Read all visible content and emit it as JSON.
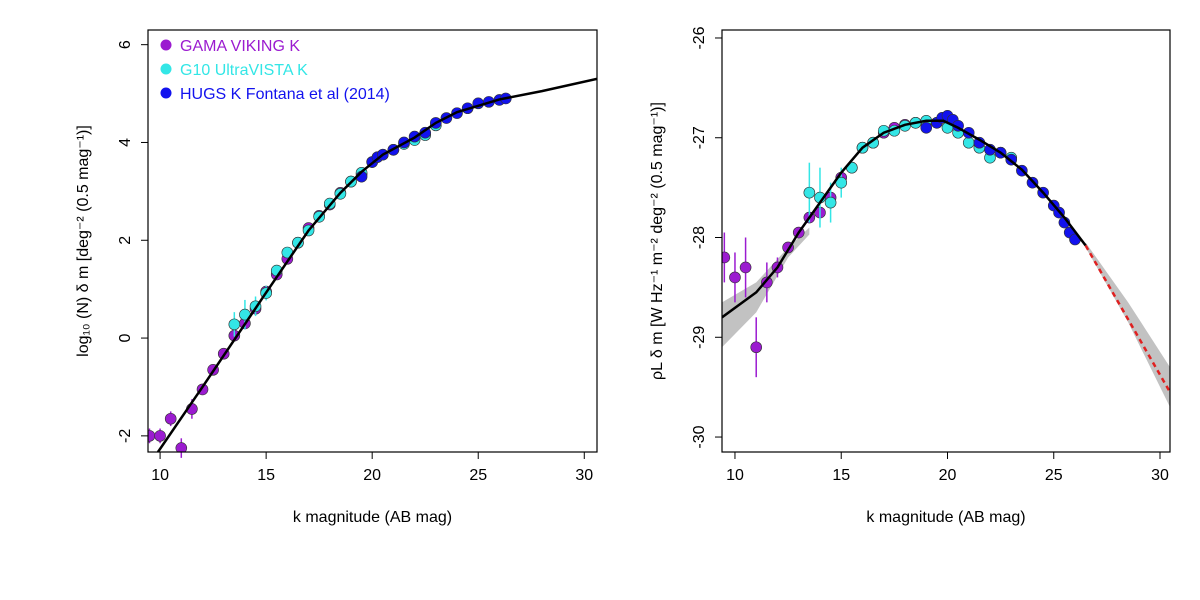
{
  "chart_data": [
    {
      "type": "scatter",
      "xlabel": "k magnitude (AB mag)",
      "ylabel": "log₁₀ (N) δ m [deg⁻² (0.5 mag⁻¹)]",
      "xlim": [
        9.43,
        30.6
      ],
      "ylim": [
        -2.33,
        6.3
      ],
      "xticks": [
        10,
        15,
        20,
        25,
        30
      ],
      "yticks": [
        -2,
        0,
        2,
        4,
        6
      ],
      "legend": "top-left",
      "series": [
        {
          "name": "GAMA VIKING K",
          "color": "#9b1bd0",
          "x": [
            9.5,
            10,
            10.5,
            11,
            11.5,
            12,
            12.5,
            13,
            13.5,
            14,
            14.5,
            15,
            15.5,
            16,
            16.5,
            17,
            17.5,
            18,
            18.5,
            19,
            19.5
          ],
          "values": [
            -2.0,
            -2.0,
            -1.65,
            -2.25,
            -1.45,
            -1.05,
            -0.65,
            -0.32,
            0.05,
            0.3,
            0.6,
            0.95,
            1.3,
            1.62,
            1.95,
            2.25,
            2.5,
            2.73,
            2.97,
            3.2,
            3.35
          ],
          "errors": [
            0.15,
            0.15,
            0.15,
            0.2,
            0.2,
            null,
            null,
            null,
            null,
            null,
            null,
            null,
            null,
            null,
            null,
            null,
            null,
            null,
            null,
            null,
            null
          ]
        },
        {
          "name": "G10 UltraVISTA K",
          "color": "#33e6e6",
          "x": [
            13.5,
            14,
            14.5,
            15,
            15.5,
            16,
            16.5,
            17,
            17.5,
            18,
            18.5,
            19,
            19.5,
            20,
            20.5,
            21,
            21.5,
            22,
            22.5,
            23
          ],
          "values": [
            0.28,
            0.48,
            0.65,
            0.92,
            1.38,
            1.75,
            1.95,
            2.2,
            2.48,
            2.75,
            2.95,
            3.2,
            3.38,
            3.6,
            3.75,
            3.85,
            3.97,
            4.05,
            4.15,
            4.35
          ],
          "errors": [
            0.25,
            0.3,
            0.2,
            0.15,
            null,
            null,
            null,
            null,
            null,
            null,
            null,
            null,
            null,
            null,
            null,
            null,
            null,
            null,
            null,
            null
          ]
        },
        {
          "name": "HUGS K Fontana et al (2014)",
          "color": "#1212ee",
          "x": [
            19.5,
            20,
            20.25,
            20.5,
            21,
            21.5,
            22,
            22.5,
            23,
            23.5,
            24,
            24.5,
            25,
            25.5,
            26,
            26.3
          ],
          "values": [
            3.3,
            3.6,
            3.7,
            3.75,
            3.85,
            4.0,
            4.12,
            4.2,
            4.4,
            4.5,
            4.6,
            4.7,
            4.8,
            4.83,
            4.87,
            4.9
          ]
        }
      ],
      "fit": {
        "color": "#000000",
        "x": [
          9.9,
          12,
          15,
          17,
          18.5,
          19.5,
          20.5,
          22,
          23,
          24,
          26,
          28,
          30.6
        ],
        "values": [
          -2.33,
          -1.0,
          0.93,
          2.2,
          2.97,
          3.4,
          3.75,
          4.1,
          4.4,
          4.62,
          4.88,
          5.05,
          5.3
        ]
      }
    },
    {
      "type": "scatter",
      "xlabel": "k magnitude (AB mag)",
      "ylabel": "ρL δ m [W Hz⁻¹ m⁻² deg⁻² (0.5 mag⁻¹)]",
      "xlim": [
        9.39,
        30.47
      ],
      "ylim": [
        -30.15,
        -25.92
      ],
      "xticks": [
        10,
        15,
        20,
        25,
        30
      ],
      "yticks": [
        -30,
        -29,
        -28,
        -27,
        -26
      ],
      "series": [
        {
          "name": "GAMA VIKING K",
          "color": "#9b1bd0",
          "x": [
            9.5,
            10,
            10.5,
            11,
            11.5,
            12,
            12.5,
            13,
            13.5,
            14,
            14.5,
            15,
            15.5,
            16,
            16.5,
            17,
            17.5,
            18,
            18.5,
            19
          ],
          "values": [
            -28.2,
            -28.4,
            -28.3,
            -29.1,
            -28.45,
            -28.3,
            -28.1,
            -27.95,
            -27.8,
            -27.75,
            -27.6,
            -27.4,
            -27.3,
            -27.1,
            -27.05,
            -26.95,
            -26.9,
            -26.87,
            -26.85,
            -26.85
          ],
          "errors": [
            0.25,
            0.25,
            0.3,
            0.3,
            0.2,
            0.1,
            null,
            null,
            null,
            null,
            null,
            null,
            null,
            null,
            null,
            null,
            null,
            null,
            null,
            null
          ]
        },
        {
          "name": "G10 UltraVISTA K",
          "color": "#33e6e6",
          "x": [
            13.5,
            14,
            14.5,
            15,
            15.5,
            16,
            16.5,
            17,
            17.5,
            18,
            18.5,
            19,
            19.5,
            20,
            20.5,
            21,
            21.5,
            22,
            22.5,
            23
          ],
          "values": [
            -27.55,
            -27.6,
            -27.65,
            -27.45,
            -27.3,
            -27.1,
            -27.05,
            -26.93,
            -26.93,
            -26.88,
            -26.85,
            -26.83,
            -26.85,
            -26.9,
            -26.95,
            -27.05,
            -27.1,
            -27.2,
            -27.15,
            -27.2
          ],
          "errors": [
            0.3,
            0.3,
            0.2,
            0.15,
            null,
            null,
            null,
            null,
            null,
            null,
            null,
            null,
            null,
            null,
            null,
            null,
            null,
            null,
            null,
            null
          ]
        },
        {
          "name": "HUGS K Fontana et al (2014)",
          "color": "#1212ee",
          "x": [
            19,
            19.5,
            19.75,
            20,
            20.25,
            20.5,
            21,
            21.5,
            22,
            22.5,
            23,
            23.5,
            24,
            24.5,
            25,
            25.25,
            25.5,
            25.75,
            26
          ],
          "values": [
            -26.9,
            -26.85,
            -26.8,
            -26.78,
            -26.82,
            -26.88,
            -26.95,
            -27.05,
            -27.12,
            -27.15,
            -27.22,
            -27.33,
            -27.45,
            -27.55,
            -27.68,
            -27.75,
            -27.85,
            -27.95,
            -28.02
          ]
        }
      ],
      "bands": [
        {
          "color": "#999999",
          "x": [
            9.39,
            11,
            12.5,
            13.5
          ],
          "upper": [
            -28.65,
            -28.45,
            -28.1,
            -27.9
          ],
          "lower": [
            -29.1,
            -28.75,
            -28.2,
            -27.97
          ]
        },
        {
          "color": "#999999",
          "x": [
            26.5,
            28.5,
            30.47
          ],
          "upper": [
            -28.05,
            -28.65,
            -29.3
          ],
          "lower": [
            -28.1,
            -28.85,
            -29.7
          ]
        }
      ],
      "fit": {
        "color": "#000000",
        "x": [
          9.39,
          11,
          12,
          13,
          14,
          15,
          16,
          17,
          18,
          19,
          19.8,
          20.5,
          21.5,
          22.5,
          23.5,
          24.5,
          25.5,
          26.5
        ],
        "values": [
          -28.8,
          -28.55,
          -28.3,
          -27.95,
          -27.65,
          -27.35,
          -27.1,
          -26.95,
          -26.87,
          -26.83,
          -26.83,
          -26.9,
          -27.02,
          -27.15,
          -27.32,
          -27.55,
          -27.8,
          -28.08
        ]
      },
      "extrapolation": {
        "color": "#e02020",
        "x": [
          26.5,
          30.47
        ],
        "values": [
          -28.08,
          -29.55
        ]
      }
    }
  ]
}
